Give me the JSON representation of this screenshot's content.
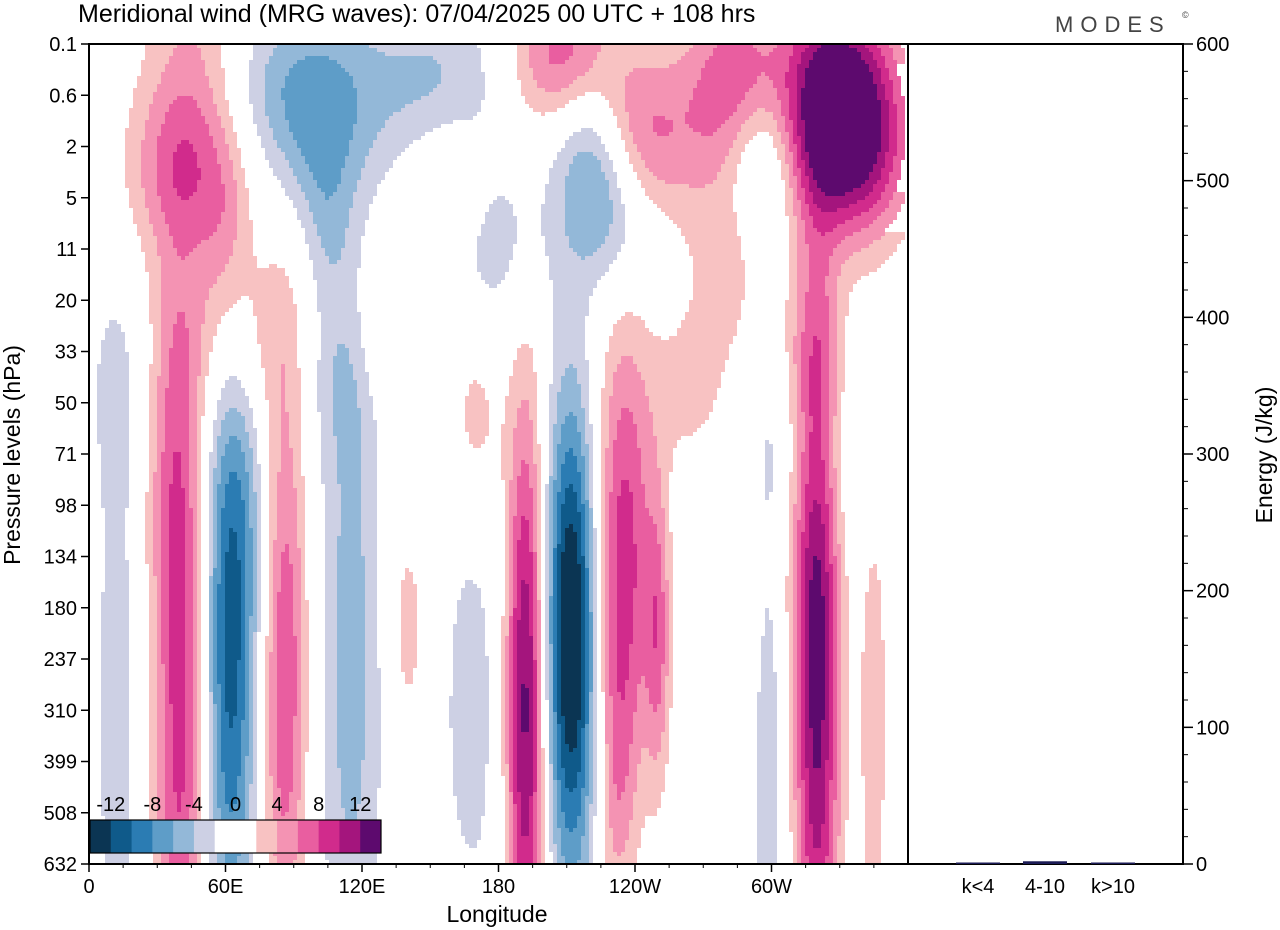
{
  "title": "Meridional wind (MRG waves):  07/04/2025  00 UTC  + 108 hrs",
  "brand": "MODES",
  "brand_mark": "©",
  "colors": {
    "neg": [
      "#0b3553",
      "#0f5a8a",
      "#2b7cb3",
      "#5e9dc8",
      "#93b8d8",
      "#cdd0e4"
    ],
    "neutral": "#ffffff",
    "pos": [
      "#f8c2c2",
      "#f493b3",
      "#e95ea0",
      "#d12b8c",
      "#a4157d",
      "#5d0a6e"
    ]
  },
  "chart_data": [
    {
      "type": "heatmap",
      "name": "meridional-wind-contour",
      "xlabel": "Longitude",
      "ylabel": "Pressure levels (hPa)",
      "x_ticks": [
        "0",
        "60E",
        "120E",
        "180",
        "120W",
        "60W"
      ],
      "x_tick_values": [
        0,
        60,
        120,
        180,
        240,
        300
      ],
      "xlim": [
        0,
        360
      ],
      "y_ticks": [
        "0.1",
        "0.6",
        "2",
        "5",
        "11",
        "20",
        "33",
        "50",
        "71",
        "98",
        "134",
        "180",
        "237",
        "310",
        "399",
        "508",
        "632"
      ],
      "colorbar_labels": [
        "-12",
        "-8",
        "-4",
        "0",
        "4",
        "8",
        "12"
      ],
      "colorbar_levels": [
        -14,
        -12,
        -10,
        -8,
        -6,
        -4,
        -2,
        0,
        2,
        4,
        6,
        8,
        10,
        12,
        14
      ],
      "blobs": [
        {
          "lon": 12,
          "lev": 310,
          "v": -3.5,
          "wlon": 6,
          "wlev": 5
        },
        {
          "lon": 40,
          "lev": 290,
          "v": 9,
          "wlon": 8,
          "wlev": 5
        },
        {
          "lon": 35,
          "lev": 60,
          "v": 3.5,
          "wlon": 9,
          "wlev": 2
        },
        {
          "lon": 62,
          "lev": 260,
          "v": -10,
          "wlon": 8,
          "wlev": 4
        },
        {
          "lon": 86,
          "lev": 250,
          "v": 8,
          "wlon": 7,
          "wlev": 4
        },
        {
          "lon": 115,
          "lev": 240,
          "v": -5,
          "wlon": 10,
          "wlev": 5
        },
        {
          "lon": 140,
          "lev": 200,
          "v": 3,
          "wlon": 6,
          "wlev": 1.5
        },
        {
          "lon": 168,
          "lev": 310,
          "v": -3,
          "wlon": 10,
          "wlev": 3
        },
        {
          "lon": 192,
          "lev": 300,
          "v": 13,
          "wlon": 6,
          "wlev": 4
        },
        {
          "lon": 212,
          "lev": 170,
          "v": -12,
          "wlon": 8,
          "wlev": 3
        },
        {
          "lon": 212,
          "lev": 380,
          "v": -5,
          "wlon": 8,
          "wlev": 3
        },
        {
          "lon": 235,
          "lev": 130,
          "v": 9,
          "wlon": 9,
          "wlev": 3
        },
        {
          "lon": 250,
          "lev": 210,
          "v": 6,
          "wlon": 4,
          "wlev": 2
        },
        {
          "lon": 232,
          "lev": 440,
          "v": 4,
          "wlon": 6,
          "wlev": 2
        },
        {
          "lon": 299,
          "lev": 240,
          "v": -4,
          "wlon": 6,
          "wlev": 5
        },
        {
          "lon": 320,
          "lev": 240,
          "v": 13,
          "wlon": 7,
          "wlev": 5
        },
        {
          "lon": 345,
          "lev": 320,
          "v": 3,
          "wlon": 5,
          "wlev": 4
        },
        {
          "lon": 50,
          "lev": 0.2,
          "v": 5,
          "wlon": 18,
          "wlev": 1.5
        },
        {
          "lon": 90,
          "lev": 0.4,
          "v": -6,
          "wlon": 30,
          "wlev": 1.2
        },
        {
          "lon": 155,
          "lev": 0.45,
          "v": -4,
          "wlon": 20,
          "wlev": 1.2
        },
        {
          "lon": 210,
          "lev": 0.15,
          "v": 8,
          "wlon": 16,
          "wlev": 1.0
        },
        {
          "lon": 285,
          "lev": 0.4,
          "v": 8,
          "wlon": 16,
          "wlev": 1.2
        },
        {
          "lon": 330,
          "lev": 0.5,
          "v": 13,
          "wlon": 18,
          "wlev": 1.4
        },
        {
          "lon": 240,
          "lev": 1.8,
          "v": 8,
          "wlon": 18,
          "wlev": 1.2
        },
        {
          "lon": 295,
          "lev": 2.2,
          "v": -6,
          "wlon": 12,
          "wlev": 1.2
        },
        {
          "lon": 335,
          "lev": 2.6,
          "v": 8,
          "wlon": 18,
          "wlev": 1.2
        },
        {
          "lon": 220,
          "lev": 1.5,
          "v": -6,
          "wlon": 12,
          "wlev": 1.4
        },
        {
          "lon": 42,
          "lev": 3.0,
          "v": 6,
          "wlon": 18,
          "wlev": 1.2
        },
        {
          "lon": 100,
          "lev": 2.4,
          "v": -3,
          "wlon": 16,
          "wlev": 1.2
        },
        {
          "lon": 158,
          "lev": 3.2,
          "v": 3,
          "wlon": 12,
          "wlev": 1.0
        },
        {
          "lon": 230,
          "lev": 5.0,
          "v": -6,
          "wlon": 14,
          "wlev": 1.2
        },
        {
          "lon": 180,
          "lev": 10.0,
          "v": -3,
          "wlon": 16,
          "wlev": 1.2
        },
        {
          "lon": 280,
          "lev": 8.0,
          "v": 3,
          "wlon": 12,
          "wlev": 1.5
        },
        {
          "lon": 60,
          "lev": 8.5,
          "v": 3,
          "wlon": 8,
          "wlev": 1.2
        },
        {
          "lon": 105,
          "lev": 8.0,
          "v": -2.5,
          "wlon": 8,
          "wlev": 1.2
        },
        {
          "lon": 60,
          "lev": 30.0,
          "v": 4,
          "wlon": 28,
          "wlev": 1.4
        },
        {
          "lon": 25,
          "lev": 40.0,
          "v": -3,
          "wlon": 22,
          "wlev": 1.5
        },
        {
          "lon": 110,
          "lev": 38.0,
          "v": -3,
          "wlon": 14,
          "wlev": 1.3
        },
        {
          "lon": 130,
          "lev": 28.0,
          "v": 3,
          "wlon": 10,
          "wlev": 1.1
        },
        {
          "lon": 170,
          "lev": 56.0,
          "v": 3,
          "wlon": 8,
          "wlev": 1.2
        },
        {
          "lon": 265,
          "lev": 45.0,
          "v": 3,
          "wlon": 14,
          "wlev": 1.3
        },
        {
          "lon": 320,
          "lev": 35.0,
          "v": 3,
          "wlon": 12,
          "wlev": 1.2
        },
        {
          "lon": 310,
          "lev": 60.0,
          "v": -3,
          "wlon": 25,
          "wlev": 1.6
        },
        {
          "lon": 300,
          "lev": 80.0,
          "v": 3,
          "wlon": 14,
          "wlev": 3.0
        },
        {
          "lon": 68,
          "lev": 95.0,
          "v": -3,
          "wlon": 10,
          "wlev": 2.5
        }
      ]
    },
    {
      "type": "bar",
      "name": "energy-by-wavenumber",
      "ylabel": "Energy (J/kg)",
      "categories": [
        "k<4",
        "4-10",
        "k>10"
      ],
      "values": [
        0.5,
        2,
        0.4
      ],
      "ylim": [
        0,
        600
      ],
      "y_ticks": [
        "0",
        "100",
        "200",
        "300",
        "400",
        "500",
        "600"
      ],
      "color": "#1b1b55"
    }
  ]
}
